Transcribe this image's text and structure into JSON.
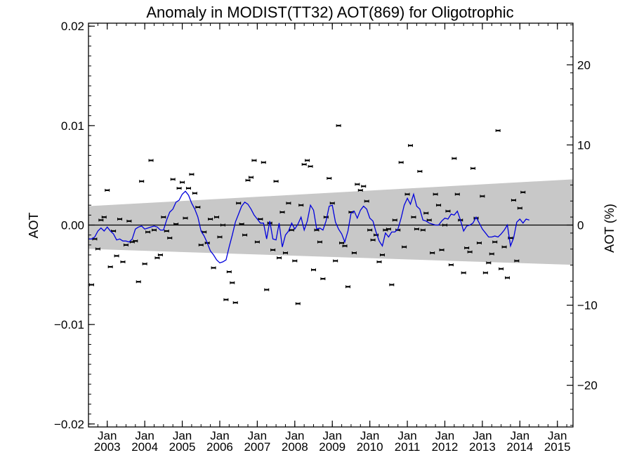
{
  "chart_data": {
    "type": "scatter",
    "title": "Anomaly in MODIST(TT32) AOT(869) for Oligotrophic",
    "ylabel": "AOT",
    "y2label": "AOT (%)",
    "xlabel": "",
    "ylim": [
      -0.0203,
      0.0203
    ],
    "y2lim": [
      -25.2,
      25.2
    ],
    "xlim": [
      "2002-07-01",
      "2015-06-01"
    ],
    "y_ticks": [
      -0.02,
      -0.01,
      0.0,
      0.01,
      0.02
    ],
    "y_tick_labels": [
      "−0.02",
      "−0.01",
      "0.00",
      "0.01",
      "0.02"
    ],
    "y2_ticks": [
      -20,
      -10,
      0,
      10,
      20
    ],
    "y2_tick_labels": [
      "−20",
      "−10",
      "0",
      "10",
      "20"
    ],
    "x_ticks": [
      {
        "date": "2003-01",
        "month": "Jan",
        "year": "2003"
      },
      {
        "date": "2004-01",
        "month": "Jan",
        "year": "2004"
      },
      {
        "date": "2005-01",
        "month": "Jan",
        "year": "2005"
      },
      {
        "date": "2006-01",
        "month": "Jan",
        "year": "2006"
      },
      {
        "date": "2007-01",
        "month": "Jan",
        "year": "2007"
      },
      {
        "date": "2008-01",
        "month": "Jan",
        "year": "2008"
      },
      {
        "date": "2009-01",
        "month": "Jan",
        "year": "2009"
      },
      {
        "date": "2010-01",
        "month": "Jan",
        "year": "2010"
      },
      {
        "date": "2011-01",
        "month": "Jan",
        "year": "2011"
      },
      {
        "date": "2012-01",
        "month": "Jan",
        "year": "2012"
      },
      {
        "date": "2013-01",
        "month": "Jan",
        "year": "2013"
      },
      {
        "date": "2014-01",
        "month": "Jan",
        "year": "2014"
      },
      {
        "date": "2015-01",
        "month": "Jan",
        "year": "2015"
      }
    ],
    "zero_line": 0.0,
    "grid": false,
    "uncertainty_band": {
      "color": "#c8c8c8",
      "start": {
        "date": "2002-07",
        "upper": 0.0019,
        "lower": -0.0024
      },
      "end": {
        "date": "2015-06",
        "upper": 0.0046,
        "lower": -0.004
      }
    },
    "colors": {
      "smoothed_line": "#0000dd",
      "points": "#000000",
      "zero_line": "#000000",
      "band": "#c8c8c8"
    },
    "monthly_anomalies": {
      "start": "2002-08",
      "values": [
        -0.006,
        -0.0014,
        -0.0024,
        0.0005,
        0.0008,
        0.0035,
        -0.0042,
        -0.0006,
        -0.0031,
        0.0006,
        -0.0037,
        -0.002,
        0.0004,
        -0.0017,
        -0.0016,
        -0.0057,
        0.0044,
        -0.0039,
        -0.0007,
        0.0065,
        -0.0005,
        -0.0033,
        -0.003,
        0.0008,
        -0.0006,
        -0.0013,
        0.0046,
        0.0001,
        0.0037,
        0.0043,
        0.0007,
        0.0037,
        0.0051,
        0.0032,
        0.0018,
        -0.002,
        -0.0007,
        -0.0018,
        0.0006,
        -0.0043,
        0.0008,
        -0.0012,
        0.0,
        -0.0075,
        -0.0047,
        -0.0058,
        -0.0078,
        0.0022,
        0.0001,
        -0.001,
        0.0045,
        0.0048,
        0.0065,
        -0.0017,
        0.0006,
        0.0063,
        -0.0065,
        0.0002,
        -0.0025,
        0.0044,
        -0.0033,
        0.0013,
        -0.0028,
        0.0022,
        -0.0005,
        -0.0036,
        -0.0079,
        0.002,
        0.0061,
        0.0065,
        0.0059,
        -0.0045,
        -0.0005,
        -0.0017,
        -0.0054,
        0.0008,
        0.0047,
        0.0022,
        -0.0036,
        0.01,
        -0.0018,
        -0.0021,
        -0.0062,
        0.0013,
        -0.0028,
        0.0041,
        0.0035,
        0.0039,
        0.0024,
        -0.0005,
        -0.0015,
        -0.001,
        -0.0037,
        -0.003,
        -0.0005,
        -0.0004,
        -0.006,
        0.0005,
        -0.0005,
        0.0063,
        -0.0022,
        0.0031,
        0.008,
        0.0008,
        -0.0004,
        0.0054,
        -0.0005,
        0.0012,
        0.0005,
        -0.0028,
        0.0031,
        0.002,
        -0.0025,
        0.0,
        0.0014,
        -0.004,
        0.0067,
        0.0031,
        0.0005,
        -0.0048,
        -0.0023,
        -0.0027,
        0.0057,
        0.0007,
        -0.0018,
        0.0029,
        -0.0048,
        -0.0038,
        -0.0029,
        -0.0017,
        0.0095,
        -0.0044,
        -0.0022,
        -0.0053,
        -0.0013,
        0.0025,
        -0.0036,
        0.0017,
        0.0033
      ]
    },
    "smoothed_series": {
      "start": "2002-07",
      "values": [
        -0.0014,
        -0.0014,
        -0.0012,
        -0.0006,
        -0.0003,
        -0.0006,
        -0.0002,
        -0.0006,
        -0.0009,
        -0.0015,
        -0.0014,
        -0.0016,
        -0.0016,
        -0.0017,
        -0.0014,
        -0.0004,
        -0.0002,
        -0.0001,
        -0.0004,
        -0.0003,
        -0.0002,
        -0.0001,
        -0.0002,
        -0.0005,
        -0.0005,
        0.0005,
        0.0013,
        0.0016,
        0.0023,
        0.0025,
        0.0031,
        0.0034,
        0.003,
        0.0022,
        0.0016,
        0.0008,
        -0.0006,
        -0.0011,
        -0.0018,
        -0.0026,
        -0.003,
        -0.0035,
        -0.0038,
        -0.0037,
        -0.0035,
        -0.0022,
        -0.001,
        0.0003,
        0.0011,
        0.0019,
        0.0023,
        0.0021,
        0.0016,
        0.001,
        0.0006,
        0.0002,
        0.0002,
        -0.0014,
        0.0004,
        -0.0014,
        -0.0015,
        0.0002,
        -0.0022,
        -0.001,
        -0.0006,
        0.0002,
        -0.0004,
        0.0001,
        0.0008,
        -0.0005,
        0.0004,
        0.002,
        0.0015,
        -0.0004,
        -0.0003,
        -0.0005,
        0.0004,
        0.0019,
        0.002,
        0.0003,
        -0.0004,
        -0.0009,
        -0.0017,
        -0.0006,
        0.0012,
        0.0014,
        0.0007,
        0.0015,
        0.0019,
        0.0016,
        0.0007,
        0.0004,
        -0.0007,
        -0.0016,
        -0.0021,
        -0.0008,
        -0.0012,
        -0.0007,
        -0.0007,
        -0.0004,
        0.0007,
        0.002,
        0.0027,
        0.0021,
        0.0031,
        0.0019,
        0.0016,
        0.0005,
        0.0004,
        0.0002,
        0.0001,
        0.0,
        0.0,
        0.0004,
        0.0007,
        0.0006,
        0.0011,
        0.001,
        0.0014,
        0.0005,
        -0.0006,
        -0.0001,
        0.0,
        0.0002,
        0.0008,
        0.0002,
        -0.0004,
        -0.0008,
        -0.0012,
        -0.0012,
        -0.0011,
        -0.0012,
        -0.0009,
        -0.0005,
        0.0,
        -0.0021,
        -0.0013,
        0.0003,
        0.0006,
        0.0002,
        0.0006,
        0.0005
      ]
    }
  }
}
